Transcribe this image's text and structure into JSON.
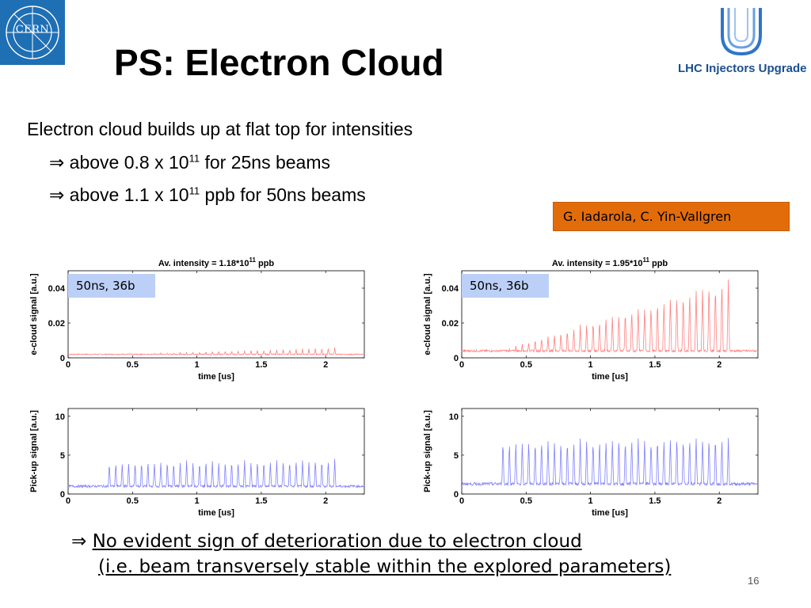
{
  "header": {
    "title": "PS: Electron Cloud",
    "logo_left_text": "CERN",
    "logo_right_text": "LHC Injectors Upgrade"
  },
  "bullets": {
    "main": "Electron cloud builds up at flat top for intensities",
    "sub1_pre": "above 0.8 x 10",
    "sub1_exp": "11",
    "sub1_post": " for 25ns beams",
    "sub2_pre": "above 1.1 x 10",
    "sub2_exp": "11",
    "sub2_post": " ppb for 50ns beams",
    "arrow": "⇒"
  },
  "authors": "G. Iadarola, C. Yin-Vallgren",
  "conclusion": {
    "arrow": "⇒",
    "line1": "No evident sign of deterioration due to electron cloud",
    "line2": "(i.e. beam transversely stable within the explored parameters)"
  },
  "page_number": "16",
  "colors": {
    "ecloud": "#ff8080",
    "pickup": "#8080ff",
    "tag": "#bcd0f7",
    "authors_bg": "#e36c0a"
  },
  "chart_data": [
    {
      "id": "ecloud-left",
      "type": "line",
      "title_pre": "Av. intensity = 1.18*10",
      "title_exp": "11",
      "title_post": " ppb",
      "xlabel": "time [us]",
      "ylabel": "e-cloud signal [a.u.]",
      "xlim": [
        0,
        2.3
      ],
      "ylim": [
        0,
        0.05
      ],
      "xticks": [
        "0",
        "0.5",
        "1",
        "1.5",
        "2"
      ],
      "xtick_values": [
        0,
        0.5,
        1,
        1.5,
        2
      ],
      "yticks": [
        "0",
        "0.02",
        "0.04"
      ],
      "ytick_values": [
        0,
        0.02,
        0.04
      ],
      "tag": "50ns, 36b",
      "bunches": 36,
      "first_bunch_us": 0.32,
      "bunch_spacing_us": 0.05,
      "baseline": 0.002,
      "peak_start": 0.002,
      "peak_end": 0.006
    },
    {
      "id": "ecloud-right",
      "type": "line",
      "title_pre": "Av. intensity = 1.95*10",
      "title_exp": "11",
      "title_post": " ppb",
      "xlabel": "time [us]",
      "ylabel": "e-cloud signal [a.u.]",
      "xlim": [
        0,
        2.3
      ],
      "ylim": [
        0,
        0.05
      ],
      "xticks": [
        "0",
        "0.5",
        "1",
        "1.5",
        "2"
      ],
      "xtick_values": [
        0,
        0.5,
        1,
        1.5,
        2
      ],
      "yticks": [
        "0",
        "0.02",
        "0.04"
      ],
      "ytick_values": [
        0,
        0.02,
        0.04
      ],
      "tag": "50ns, 36b",
      "bunches": 36,
      "first_bunch_us": 0.32,
      "bunch_spacing_us": 0.05,
      "baseline": 0.004,
      "peak_start": 0.005,
      "peak_end": 0.046
    },
    {
      "id": "pickup-left",
      "type": "line",
      "xlabel": "time [us]",
      "ylabel": "Pick-up signal [a.u.]",
      "xlim": [
        0,
        2.3
      ],
      "ylim": [
        0,
        11
      ],
      "xticks": [
        "0",
        "0.5",
        "1",
        "1.5",
        "2"
      ],
      "xtick_values": [
        0,
        0.5,
        1,
        1.5,
        2
      ],
      "yticks": [
        "0",
        "5",
        "10"
      ],
      "ytick_values": [
        0,
        5,
        10
      ],
      "bunches": 36,
      "first_bunch_us": 0.32,
      "bunch_spacing_us": 0.05,
      "baseline": 1.0,
      "peak_start": 4.2,
      "peak_end": 4.6
    },
    {
      "id": "pickup-right",
      "type": "line",
      "xlabel": "time [us]",
      "ylabel": "Pick-up signal [a.u.]",
      "xlim": [
        0,
        2.3
      ],
      "ylim": [
        0,
        11
      ],
      "xticks": [
        "0",
        "0.5",
        "1",
        "1.5",
        "2"
      ],
      "xtick_values": [
        0,
        0.5,
        1,
        1.5,
        2
      ],
      "yticks": [
        "0",
        "5",
        "10"
      ],
      "ytick_values": [
        0,
        5,
        10
      ],
      "bunches": 36,
      "first_bunch_us": 0.32,
      "bunch_spacing_us": 0.05,
      "baseline": 1.3,
      "peak_start": 7.0,
      "peak_end": 7.6
    }
  ]
}
